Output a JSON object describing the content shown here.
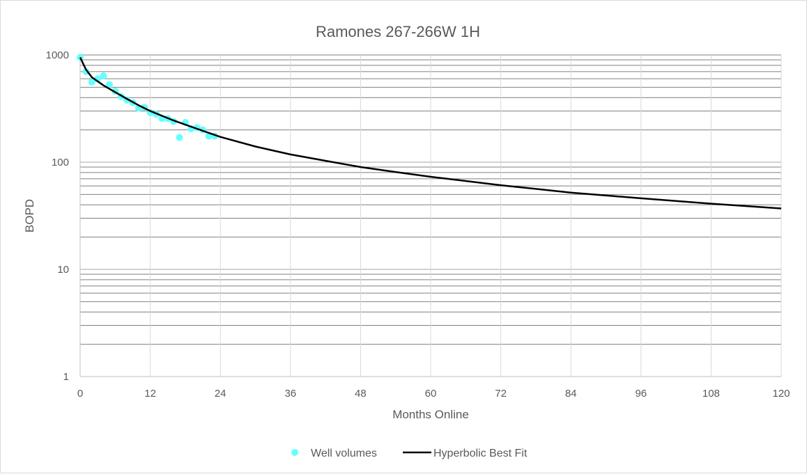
{
  "chart_data": {
    "type": "scatter",
    "title": "Ramones 267-266W 1H",
    "xlabel": "Months Online",
    "ylabel": "BOPD",
    "xlim": [
      0,
      120
    ],
    "ylim": [
      1,
      1000
    ],
    "yscale": "log",
    "grid": true,
    "x_ticks": [
      0,
      12,
      24,
      36,
      48,
      60,
      72,
      84,
      96,
      108,
      120
    ],
    "y_ticks": [
      1,
      10,
      100,
      1000
    ],
    "legend_position": "bottom",
    "series": [
      {
        "name": "Well volumes",
        "kind": "scatter",
        "color": "#66ffff",
        "points": [
          [
            0,
            950
          ],
          [
            1,
            700
          ],
          [
            2,
            560
          ],
          [
            3,
            600
          ],
          [
            4,
            640
          ],
          [
            5,
            530
          ],
          [
            6,
            460
          ],
          [
            7,
            410
          ],
          [
            8,
            380
          ],
          [
            9,
            360
          ],
          [
            10,
            320
          ],
          [
            11,
            325
          ],
          [
            12,
            290
          ],
          [
            13,
            280
          ],
          [
            14,
            255
          ],
          [
            15,
            255
          ],
          [
            16,
            240
          ],
          [
            17,
            170
          ],
          [
            18,
            235
          ],
          [
            19,
            205
          ],
          [
            20,
            210
          ],
          [
            21,
            200
          ],
          [
            22,
            175
          ],
          [
            23,
            175
          ]
        ]
      },
      {
        "name": "Hyperbolic Best Fit",
        "kind": "line",
        "color": "#000000",
        "points": [
          [
            0,
            950
          ],
          [
            1,
            730
          ],
          [
            2,
            620
          ],
          [
            4,
            520
          ],
          [
            6,
            450
          ],
          [
            8,
            390
          ],
          [
            10,
            340
          ],
          [
            12,
            300
          ],
          [
            16,
            245
          ],
          [
            20,
            205
          ],
          [
            24,
            172
          ],
          [
            30,
            140
          ],
          [
            36,
            118
          ],
          [
            42,
            103
          ],
          [
            48,
            90
          ],
          [
            54,
            81
          ],
          [
            60,
            73
          ],
          [
            72,
            61
          ],
          [
            84,
            52
          ],
          [
            96,
            46
          ],
          [
            108,
            41
          ],
          [
            120,
            37
          ]
        ]
      }
    ]
  }
}
